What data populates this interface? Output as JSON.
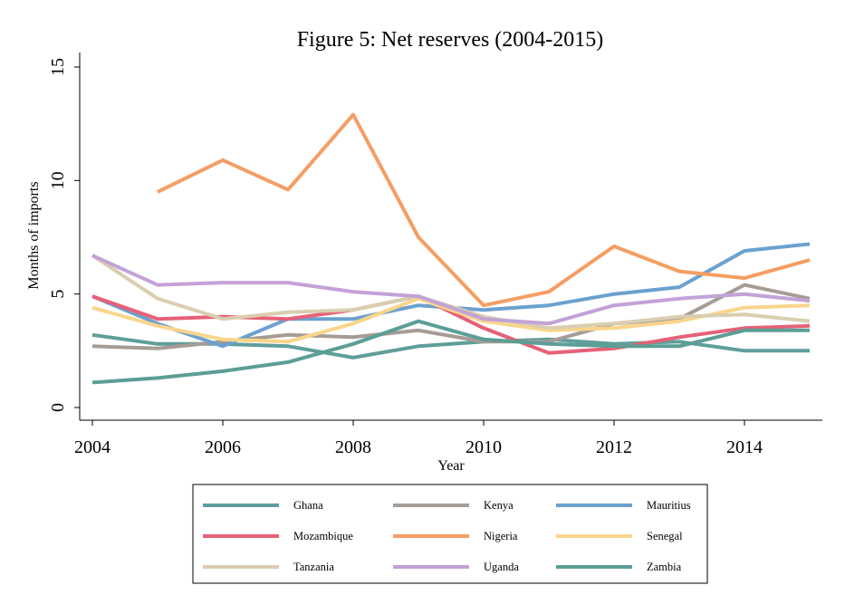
{
  "chart_data": {
    "type": "line",
    "title": "Figure 5: Net reserves (2004-2015)",
    "xlabel": "Year",
    "ylabel": "Months of imports",
    "x": [
      2004,
      2005,
      2006,
      2007,
      2008,
      2009,
      2010,
      2011,
      2012,
      2013,
      2014,
      2015
    ],
    "xlim": [
      2004,
      2015.2
    ],
    "ylim": [
      0,
      15
    ],
    "xticks": [
      "2004",
      "2006",
      "2008",
      "2010",
      "2012",
      "2014"
    ],
    "yticks": [
      "0",
      "5",
      "10",
      "15"
    ],
    "grid": false,
    "legend_position": "bottom",
    "series": [
      {
        "name": "Ghana",
        "color": "#5F9E9A",
        "values": [
          3.2,
          2.8,
          2.8,
          2.7,
          2.2,
          2.7,
          2.9,
          3.0,
          2.8,
          2.9,
          2.5,
          2.5
        ]
      },
      {
        "name": "Kenya",
        "color": "#A69C96",
        "values": [
          2.7,
          2.6,
          2.9,
          3.2,
          3.1,
          3.4,
          2.9,
          2.9,
          3.7,
          3.9,
          5.4,
          4.8
        ]
      },
      {
        "name": "Mauritius",
        "color": "#6BA1CF",
        "values": [
          4.9,
          3.7,
          2.7,
          3.9,
          3.9,
          4.5,
          4.3,
          4.5,
          5.0,
          5.3,
          6.9,
          7.2
        ]
      },
      {
        "name": "Mozambique",
        "color": "#E66177",
        "values": [
          4.9,
          3.9,
          4.0,
          3.9,
          4.3,
          4.9,
          3.5,
          2.4,
          2.6,
          3.1,
          3.5,
          3.6
        ]
      },
      {
        "name": "Nigeria",
        "color": "#F59E63",
        "values": [
          null,
          9.5,
          10.9,
          9.6,
          12.9,
          7.5,
          4.5,
          5.1,
          7.1,
          6.0,
          5.7,
          6.5
        ]
      },
      {
        "name": "Senegal",
        "color": "#F9D58B",
        "values": [
          4.4,
          3.6,
          3.0,
          2.9,
          3.7,
          4.8,
          3.8,
          3.4,
          3.5,
          3.8,
          4.4,
          4.5
        ]
      },
      {
        "name": "Tanzania",
        "color": "#D9CEB0",
        "values": [
          6.7,
          4.8,
          3.9,
          4.2,
          4.3,
          4.9,
          4.0,
          3.5,
          3.7,
          4.0,
          4.1,
          3.8
        ]
      },
      {
        "name": "Uganda",
        "color": "#C3A2D7",
        "values": [
          6.7,
          5.4,
          5.5,
          5.5,
          5.1,
          4.9,
          3.9,
          3.7,
          4.5,
          4.8,
          5.0,
          4.7
        ]
      },
      {
        "name": "Zambia",
        "color": "#5B9E96",
        "values": [
          1.1,
          1.3,
          1.6,
          2.0,
          2.8,
          3.8,
          3.0,
          2.8,
          2.7,
          2.7,
          3.4,
          3.4
        ]
      }
    ]
  }
}
